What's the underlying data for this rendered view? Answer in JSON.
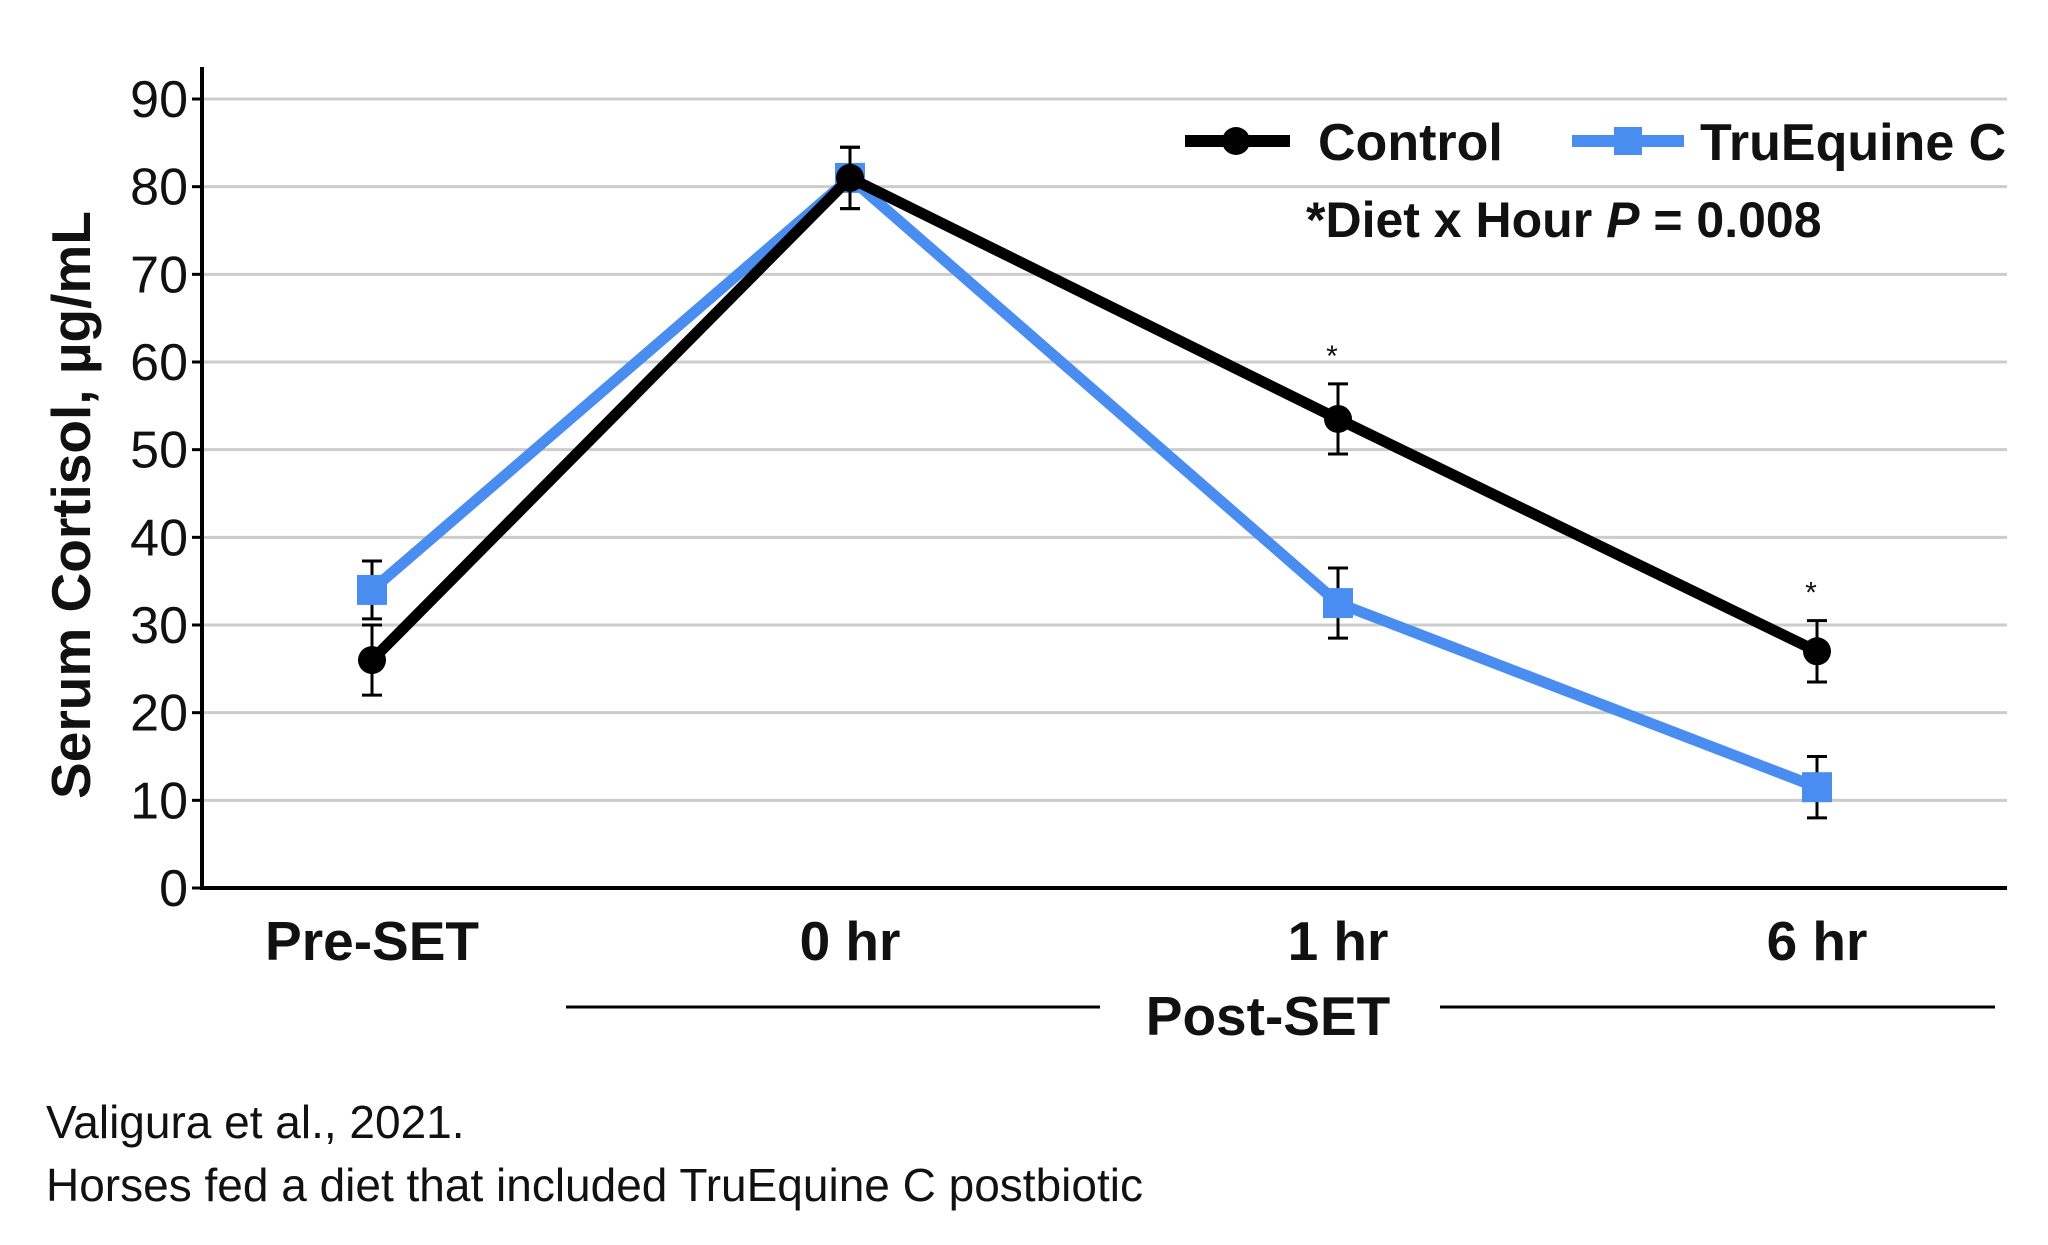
{
  "chart_data": {
    "type": "line",
    "ylabel": "Serum Cortisol, µg/mL",
    "ylim": [
      0,
      90
    ],
    "yticks": [
      0,
      10,
      20,
      30,
      40,
      50,
      60,
      70,
      80,
      90
    ],
    "categories": [
      "Pre-SET",
      "0 hr",
      "1 hr",
      "6 hr"
    ],
    "group_label": "Post-SET",
    "grid": true,
    "legend_position": "top-right",
    "annotation": {
      "prefix": "*Diet x Hour ",
      "p_symbol": "P",
      "suffix": " = 0.008"
    },
    "significance_marks": [
      {
        "category": "1 hr",
        "symbol": "*"
      },
      {
        "category": "6 hr",
        "symbol": "*"
      }
    ],
    "series": [
      {
        "name": "Control",
        "color": "#000000",
        "marker": "circle",
        "values": [
          26,
          81,
          53.5,
          27
        ],
        "error": [
          4,
          3.5,
          4,
          3.5
        ]
      },
      {
        "name": "TruEquine C",
        "color": "#4a8df0",
        "marker": "square",
        "values": [
          34,
          81,
          32.5,
          11.5
        ],
        "error": [
          3.3,
          3.5,
          4,
          3.5
        ]
      }
    ]
  },
  "caption": {
    "line1": "Valigura et al., 2021.",
    "line2": "Horses fed a diet that included TruEquine C postbiotic"
  }
}
